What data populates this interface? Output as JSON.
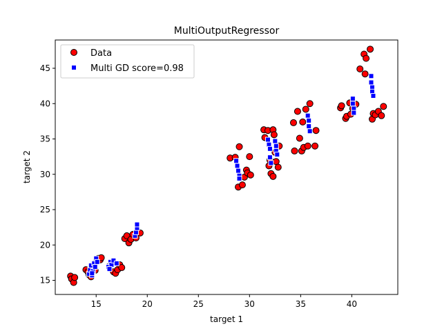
{
  "chart_data": {
    "type": "scatter",
    "title": "MultiOutputRegressor",
    "xlabel": "target 1",
    "ylabel": "target 2",
    "xlim": [
      11.0,
      44.5
    ],
    "ylim": [
      13.0,
      49.0
    ],
    "xticks": [
      15,
      20,
      25,
      30,
      35,
      40
    ],
    "yticks": [
      15,
      20,
      25,
      30,
      35,
      40,
      45
    ],
    "grid": false,
    "legend_position": "top-left",
    "series": [
      {
        "name": "Data",
        "marker": "circle",
        "color": "#ff0000",
        "edgecolor": "#000000",
        "points": [
          [
            12.5,
            15.6
          ],
          [
            12.6,
            15.2
          ],
          [
            12.8,
            14.7
          ],
          [
            12.9,
            15.4
          ],
          [
            14.0,
            16.5
          ],
          [
            14.2,
            16.2
          ],
          [
            14.3,
            15.8
          ],
          [
            14.5,
            15.5
          ],
          [
            14.6,
            16.8
          ],
          [
            14.8,
            17.2
          ],
          [
            15.0,
            17.6
          ],
          [
            15.2,
            18.1
          ],
          [
            15.4,
            17.9
          ],
          [
            15.5,
            18.2
          ],
          [
            14.4,
            16.0
          ],
          [
            14.9,
            16.4
          ],
          [
            16.3,
            17.0
          ],
          [
            16.7,
            16.2
          ],
          [
            16.9,
            16.0
          ],
          [
            17.1,
            16.5
          ],
          [
            17.3,
            17.2
          ],
          [
            17.5,
            16.8
          ],
          [
            17.8,
            20.9
          ],
          [
            18.0,
            21.3
          ],
          [
            18.2,
            20.3
          ],
          [
            18.4,
            20.8
          ],
          [
            18.6,
            21.5
          ],
          [
            18.9,
            21.0
          ],
          [
            19.1,
            21.8
          ],
          [
            19.3,
            21.7
          ],
          [
            28.1,
            32.3
          ],
          [
            28.6,
            32.4
          ],
          [
            28.9,
            28.2
          ],
          [
            29.0,
            33.9
          ],
          [
            29.3,
            28.5
          ],
          [
            29.5,
            29.6
          ],
          [
            29.7,
            30.6
          ],
          [
            29.8,
            30.2
          ],
          [
            30.0,
            32.5
          ],
          [
            30.1,
            29.9
          ],
          [
            31.4,
            36.3
          ],
          [
            31.5,
            35.2
          ],
          [
            31.8,
            36.2
          ],
          [
            31.9,
            31.2
          ],
          [
            32.0,
            32.0
          ],
          [
            32.1,
            30.1
          ],
          [
            32.3,
            36.3
          ],
          [
            32.4,
            35.6
          ],
          [
            32.5,
            33.1
          ],
          [
            32.6,
            31.8
          ],
          [
            32.8,
            31.0
          ],
          [
            32.9,
            34.0
          ],
          [
            32.3,
            29.7
          ],
          [
            34.3,
            37.3
          ],
          [
            34.4,
            33.3
          ],
          [
            34.7,
            38.9
          ],
          [
            34.9,
            35.1
          ],
          [
            35.1,
            33.3
          ],
          [
            35.3,
            33.8
          ],
          [
            35.5,
            39.2
          ],
          [
            35.7,
            34.0
          ],
          [
            35.9,
            40.0
          ],
          [
            36.4,
            34.0
          ],
          [
            36.5,
            36.2
          ],
          [
            35.2,
            37.4
          ],
          [
            38.9,
            39.4
          ],
          [
            39.0,
            39.7
          ],
          [
            39.4,
            37.9
          ],
          [
            39.5,
            38.2
          ],
          [
            39.8,
            40.1
          ],
          [
            39.9,
            38.5
          ],
          [
            40.1,
            39.3
          ],
          [
            40.4,
            39.9
          ],
          [
            40.8,
            44.9
          ],
          [
            41.2,
            47.0
          ],
          [
            41.3,
            44.2
          ],
          [
            41.4,
            46.4
          ],
          [
            41.8,
            47.7
          ],
          [
            42.0,
            37.8
          ],
          [
            42.1,
            38.6
          ],
          [
            42.3,
            38.4
          ],
          [
            42.6,
            38.9
          ],
          [
            42.9,
            38.3
          ],
          [
            43.1,
            39.6
          ]
        ]
      },
      {
        "name": "Multi GD score=0.98",
        "marker": "square",
        "color": "#0000ff",
        "edgecolor": "#ffffff",
        "points": [
          [
            14.3,
            15.9
          ],
          [
            14.4,
            16.5
          ],
          [
            14.5,
            17.1
          ],
          [
            14.6,
            15.7
          ],
          [
            14.7,
            16.3
          ],
          [
            14.8,
            17.4
          ],
          [
            14.9,
            16.9
          ],
          [
            15.0,
            18.1
          ],
          [
            15.1,
            17.6
          ],
          [
            14.6,
            16.0
          ],
          [
            16.2,
            16.9
          ],
          [
            16.4,
            17.6
          ],
          [
            16.5,
            17.2
          ],
          [
            16.7,
            17.8
          ],
          [
            17.0,
            17.4
          ],
          [
            16.3,
            16.6
          ],
          [
            18.8,
            21.3
          ],
          [
            18.9,
            21.8
          ],
          [
            19.0,
            22.4
          ],
          [
            19.0,
            22.9
          ],
          [
            28.7,
            31.9
          ],
          [
            28.8,
            31.2
          ],
          [
            28.9,
            30.5
          ],
          [
            29.0,
            29.8
          ],
          [
            29.0,
            29.4
          ],
          [
            31.8,
            34.9
          ],
          [
            31.9,
            34.2
          ],
          [
            32.0,
            33.6
          ],
          [
            32.0,
            32.4
          ],
          [
            32.1,
            31.6
          ],
          [
            32.5,
            34.7
          ],
          [
            32.6,
            34.0
          ],
          [
            32.6,
            33.3
          ],
          [
            32.7,
            32.8
          ],
          [
            35.7,
            38.3
          ],
          [
            35.8,
            37.6
          ],
          [
            35.8,
            36.8
          ],
          [
            35.9,
            36.1
          ],
          [
            40.1,
            40.7
          ],
          [
            40.1,
            40.0
          ],
          [
            40.2,
            39.3
          ],
          [
            40.2,
            38.7
          ],
          [
            41.9,
            43.9
          ],
          [
            41.9,
            43.0
          ],
          [
            42.0,
            42.3
          ],
          [
            42.0,
            41.7
          ],
          [
            42.1,
            41.1
          ]
        ]
      }
    ]
  }
}
